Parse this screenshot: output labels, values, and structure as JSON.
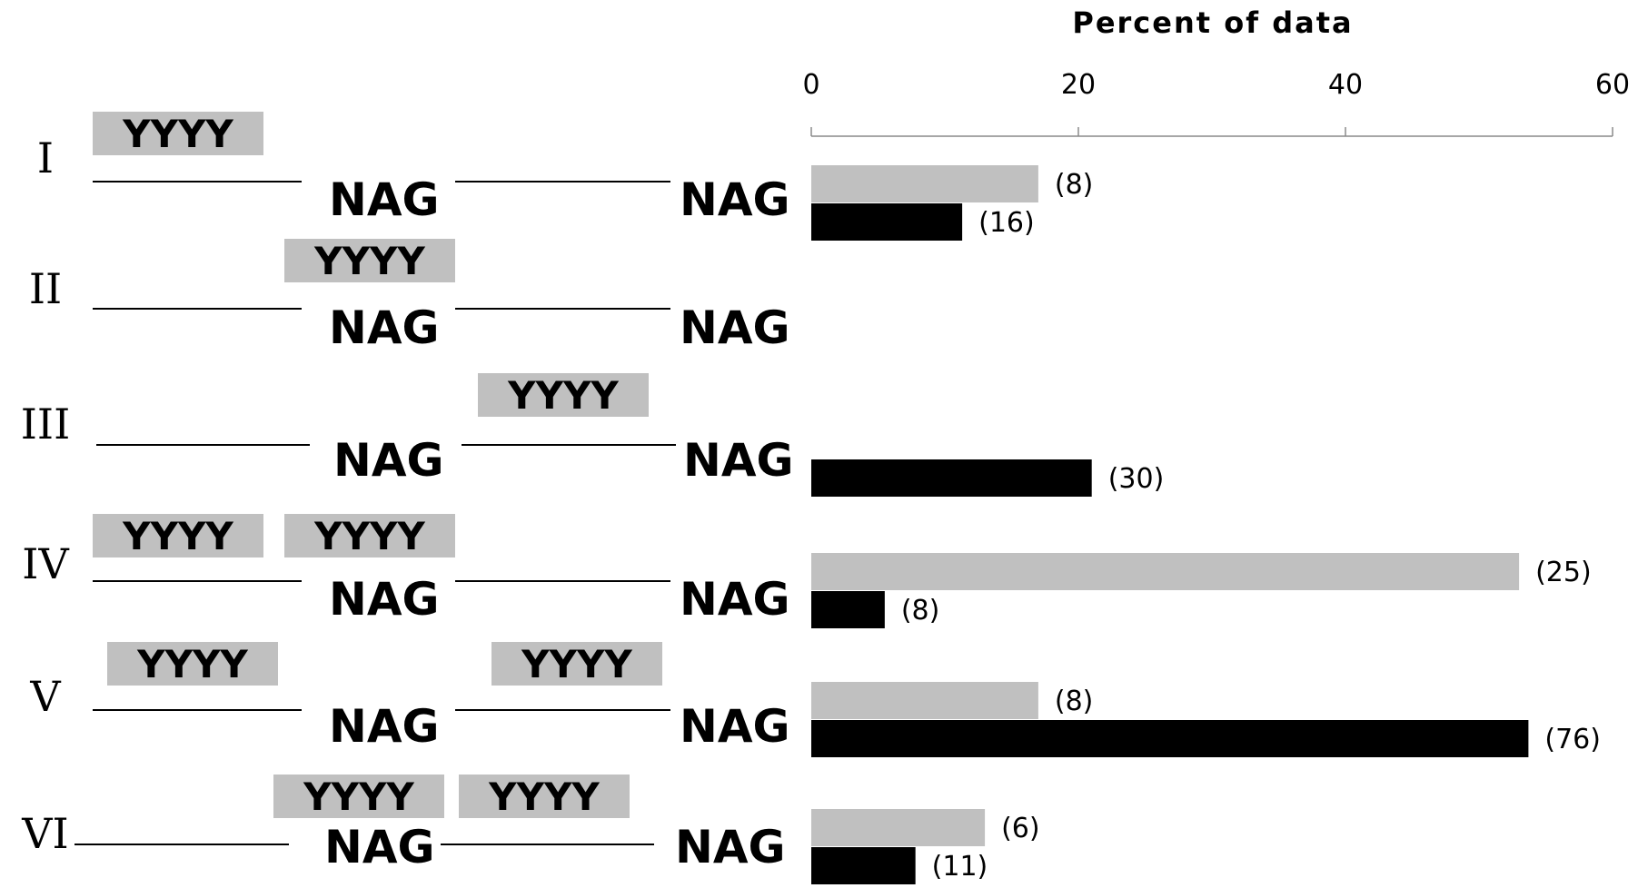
{
  "chart_data": {
    "type": "bar",
    "orientation": "horizontal",
    "title": "Percent of data",
    "xlim": [
      0,
      60
    ],
    "ticks": [
      "0",
      "20",
      "40",
      "60"
    ],
    "categories": [
      "I",
      "II",
      "III",
      "IV",
      "V",
      "VI"
    ],
    "motif_label": "YYYY",
    "site_label": "NAG",
    "series": [
      {
        "color": "#c0c0c0",
        "values": [
          17,
          null,
          null,
          53,
          17,
          13
        ],
        "counts": [
          "(8)",
          "",
          "",
          "(25)",
          "(8)",
          "(6)"
        ]
      },
      {
        "color": "#000000",
        "values": [
          11.3,
          null,
          21,
          5.5,
          53.7,
          7.8
        ],
        "counts": [
          "(16)",
          "",
          "(30)",
          "(8)",
          "(76)",
          "(11)"
        ]
      }
    ],
    "grid": false,
    "legend": "none"
  }
}
